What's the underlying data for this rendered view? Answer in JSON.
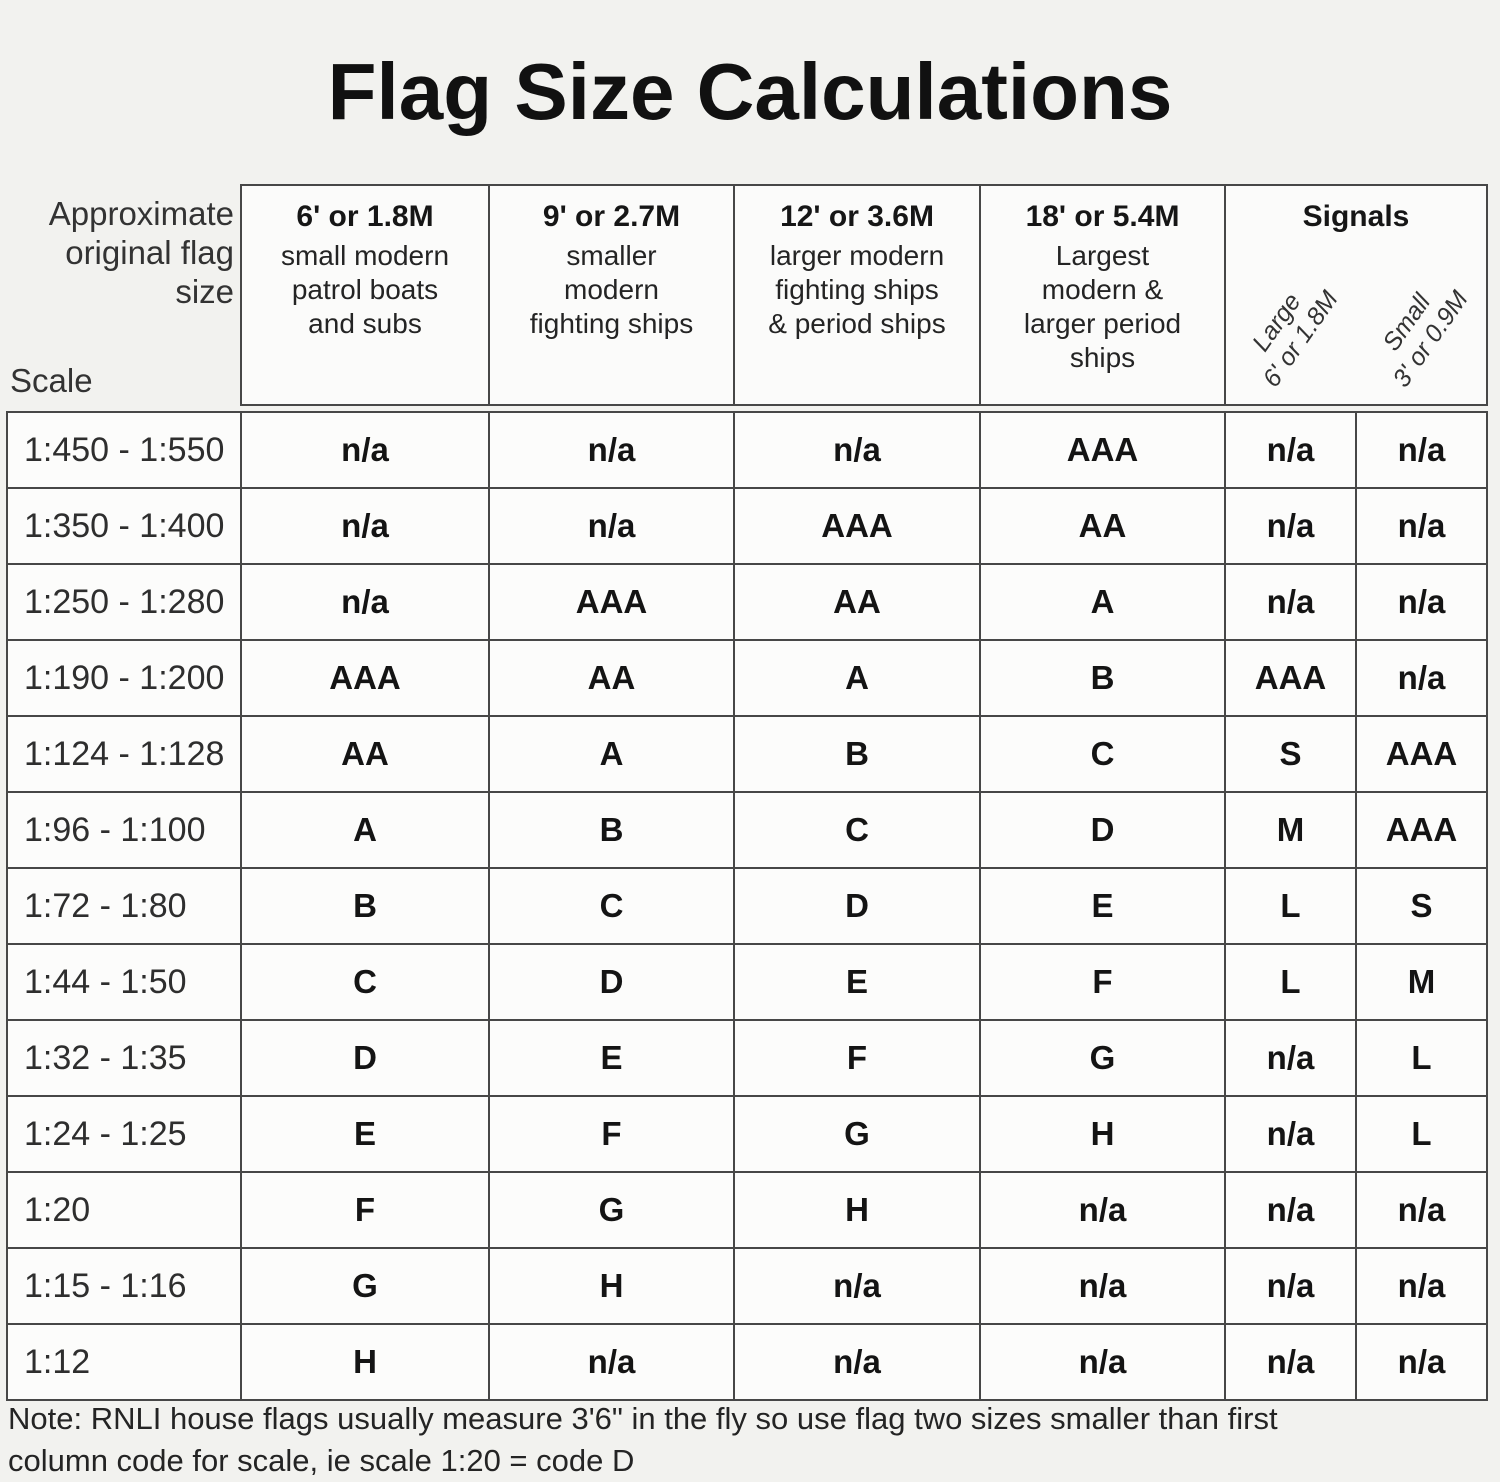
{
  "title": "Flag Size Calculations",
  "left_header": {
    "caption": "Approximate\noriginal flag\nsize",
    "scale_label": "Scale"
  },
  "columns": [
    {
      "size": "6' or 1.8M",
      "desc": "small modern\npatrol boats\nand subs"
    },
    {
      "size": "9' or 2.7M",
      "desc": "smaller\nmodern\nfighting ships"
    },
    {
      "size": "12' or 3.6M",
      "desc": "larger modern\nfighting ships\n& period ships"
    },
    {
      "size": "18' or 5.4M",
      "desc": "Largest\nmodern &\nlarger period\nships"
    }
  ],
  "signals": {
    "label": "Signals",
    "large": "Large\n6' or 1.8M",
    "small": "Small\n3' or 0.9M"
  },
  "rows": [
    {
      "scale": "1:450 - 1:550",
      "values": [
        "n/a",
        "n/a",
        "n/a",
        "AAA",
        "n/a",
        "n/a"
      ]
    },
    {
      "scale": "1:350 - 1:400",
      "values": [
        "n/a",
        "n/a",
        "AAA",
        "AA",
        "n/a",
        "n/a"
      ]
    },
    {
      "scale": "1:250 - 1:280",
      "values": [
        "n/a",
        "AAA",
        "AA",
        "A",
        "n/a",
        "n/a"
      ]
    },
    {
      "scale": "1:190 - 1:200",
      "values": [
        "AAA",
        "AA",
        "A",
        "B",
        "AAA",
        "n/a"
      ]
    },
    {
      "scale": "1:124 - 1:128",
      "values": [
        "AA",
        "A",
        "B",
        "C",
        "S",
        "AAA"
      ]
    },
    {
      "scale": "1:96 - 1:100",
      "values": [
        "A",
        "B",
        "C",
        "D",
        "M",
        "AAA"
      ]
    },
    {
      "scale": "1:72 - 1:80",
      "values": [
        "B",
        "C",
        "D",
        "E",
        "L",
        "S"
      ]
    },
    {
      "scale": "1:44 - 1:50",
      "values": [
        "C",
        "D",
        "E",
        "F",
        "L",
        "M"
      ]
    },
    {
      "scale": "1:32 - 1:35",
      "values": [
        "D",
        "E",
        "F",
        "G",
        "n/a",
        "L"
      ]
    },
    {
      "scale": "1:24 - 1:25",
      "values": [
        "E",
        "F",
        "G",
        "H",
        "n/a",
        "L"
      ]
    },
    {
      "scale": "1:20",
      "values": [
        "F",
        "G",
        "H",
        "n/a",
        "n/a",
        "n/a"
      ]
    },
    {
      "scale": "1:15 - 1:16",
      "values": [
        "G",
        "H",
        "n/a",
        "n/a",
        "n/a",
        "n/a"
      ]
    },
    {
      "scale": "1:12",
      "values": [
        "H",
        "n/a",
        "n/a",
        "n/a",
        "n/a",
        "n/a"
      ]
    }
  ],
  "note": "Note: RNLI house flags usually measure 3'6\" in the fly so use flag two sizes smaller than first\ncolumn code for scale,  ie scale 1:20 = code D",
  "colors": {
    "page_bg": "#f2f2ef",
    "cell_bg": "#fcfcfb",
    "grid_line": "#474747",
    "text": "#141414"
  }
}
